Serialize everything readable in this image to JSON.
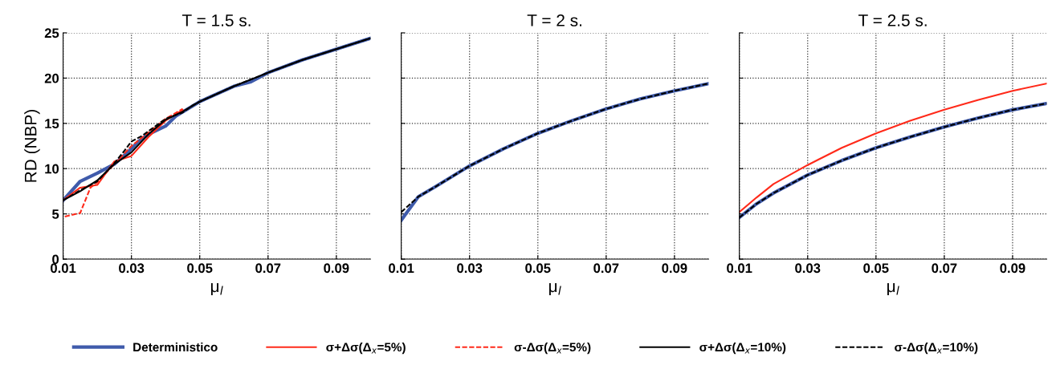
{
  "chart_data": [
    {
      "type": "line",
      "title": "T = 1.5 s.",
      "xlabel": "μ$_{l}$",
      "ylabel": "RD (NBP)",
      "xlim": [
        0.01,
        0.1
      ],
      "xticks": [
        0.01,
        0.03,
        0.05,
        0.07,
        0.09
      ],
      "ylim": [
        0,
        25
      ],
      "yticks": [
        0,
        5,
        10,
        15,
        20,
        25
      ],
      "grid": true,
      "legend": "bottom",
      "series": [
        {
          "name": "Deterministico",
          "color": "#3f5bab",
          "line_style": "solid",
          "x": [
            0.01,
            0.015,
            0.02,
            0.025,
            0.028,
            0.03,
            0.032,
            0.035,
            0.04,
            0.043,
            0.05,
            0.06,
            0.065,
            0.07,
            0.08,
            0.09,
            0.1
          ],
          "values": [
            6.5,
            8.6,
            9.5,
            10.5,
            11.5,
            12.2,
            13,
            13.8,
            14.7,
            15.8,
            17.4,
            19.1,
            19.6,
            20.6,
            22,
            23.2,
            24.4
          ]
        },
        {
          "name": "σ+Δσ(Δ$_{x}$=5%)",
          "color": "#ff2a1a",
          "line_style": "solid",
          "x": [
            0.01,
            0.015,
            0.02,
            0.025,
            0.03,
            0.035,
            0.04,
            0.045
          ],
          "values": [
            6.5,
            7.9,
            8.2,
            10.8,
            11.4,
            13.5,
            15.3,
            16.5
          ]
        },
        {
          "name": "σ-Δσ(Δ$_{x}$=5%)",
          "color": "#ff2a1a",
          "line_style": "dashed",
          "x": [
            0.0105,
            0.015,
            0.018,
            0.02,
            0.025,
            0.03,
            0.035,
            0.04,
            0.045
          ],
          "values": [
            4.7,
            5.1,
            7.9,
            8.5,
            10.5,
            12.5,
            14,
            15.5,
            16.6
          ]
        },
        {
          "name": "σ+Δσ(Δ$_{x}$=10%)",
          "color": "#000000",
          "line_style": "solid",
          "x": [
            0.01,
            0.015,
            0.02,
            0.025,
            0.03,
            0.035,
            0.04,
            0.045,
            0.05,
            0.06,
            0.07,
            0.08,
            0.09,
            0.1
          ],
          "values": [
            6.5,
            7.5,
            8.7,
            10.5,
            11.8,
            13.8,
            15.4,
            16.3,
            17.4,
            19.1,
            20.6,
            22,
            23.2,
            24.4
          ]
        },
        {
          "name": "σ-Δσ(Δ$_{x}$=10%)",
          "color": "#000000",
          "line_style": "dashed",
          "x": [
            0.01,
            0.015,
            0.02,
            0.025,
            0.028,
            0.03,
            0.033,
            0.04,
            0.045,
            0.048,
            0.05,
            0.06,
            0.07,
            0.08,
            0.09,
            0.1
          ],
          "values": [
            6.5,
            7.6,
            8.6,
            10.6,
            12,
            13,
            13.6,
            15.5,
            16.2,
            17,
            17.4,
            19.1,
            20.6,
            22,
            23.2,
            24.4
          ]
        }
      ]
    },
    {
      "type": "line",
      "title": "T = 2 s.",
      "xlabel": "μ$_{l}$",
      "xlim": [
        0.01,
        0.1
      ],
      "xticks": [
        0.01,
        0.03,
        0.05,
        0.07,
        0.09
      ],
      "ylim": [
        0,
        25
      ],
      "yticks": [
        0,
        5,
        10,
        15,
        20,
        25
      ],
      "grid": true,
      "tick_labels": "x",
      "series": [
        {
          "color": "#3f5bab",
          "line_style": "solid",
          "x": [
            0.01,
            0.015,
            0.02,
            0.03,
            0.04,
            0.05,
            0.06,
            0.07,
            0.08,
            0.09,
            0.1
          ],
          "values": [
            4.3,
            6.9,
            8.0,
            10.3,
            12.2,
            13.9,
            15.3,
            16.6,
            17.7,
            18.6,
            19.4
          ]
        },
        {
          "color": "#000000",
          "line_style": "dashed",
          "x": [
            0.01,
            0.015,
            0.02,
            0.03,
            0.04,
            0.05,
            0.06,
            0.07,
            0.08,
            0.09,
            0.1
          ],
          "values": [
            5.2,
            6.9,
            8.0,
            10.3,
            12.2,
            13.9,
            15.3,
            16.6,
            17.7,
            18.6,
            19.4
          ]
        }
      ]
    },
    {
      "type": "line",
      "title": "T = 2.5 s.",
      "xlabel": "μ$_{l}$",
      "xlim": [
        0.01,
        0.1
      ],
      "xticks": [
        0.01,
        0.03,
        0.05,
        0.07,
        0.09
      ],
      "ylim": [
        0,
        25
      ],
      "yticks": [
        0,
        5,
        10,
        15,
        20,
        25
      ],
      "grid": true,
      "tick_labels": "x",
      "series": [
        {
          "color": "#3f5bab",
          "line_style": "solid",
          "x": [
            0.01,
            0.015,
            0.02,
            0.03,
            0.04,
            0.05,
            0.06,
            0.07,
            0.08,
            0.09,
            0.1
          ],
          "values": [
            4.6,
            6.1,
            7.3,
            9.3,
            10.9,
            12.3,
            13.5,
            14.6,
            15.6,
            16.5,
            17.2
          ]
        },
        {
          "color": "#ff2a1a",
          "line_style": "solid",
          "x": [
            0.01,
            0.015,
            0.02,
            0.03,
            0.04,
            0.05,
            0.06,
            0.07,
            0.08,
            0.09,
            0.1
          ],
          "values": [
            5.2,
            6.8,
            8.3,
            10.4,
            12.3,
            13.9,
            15.3,
            16.5,
            17.6,
            18.6,
            19.4
          ]
        },
        {
          "color": "#000000",
          "line_style": "dashed",
          "x": [
            0.01,
            0.015,
            0.02,
            0.03,
            0.04,
            0.05,
            0.06,
            0.07,
            0.08,
            0.09,
            0.1
          ],
          "values": [
            4.6,
            6.1,
            7.3,
            9.3,
            10.9,
            12.3,
            13.5,
            14.6,
            15.6,
            16.5,
            17.2
          ]
        }
      ]
    }
  ]
}
